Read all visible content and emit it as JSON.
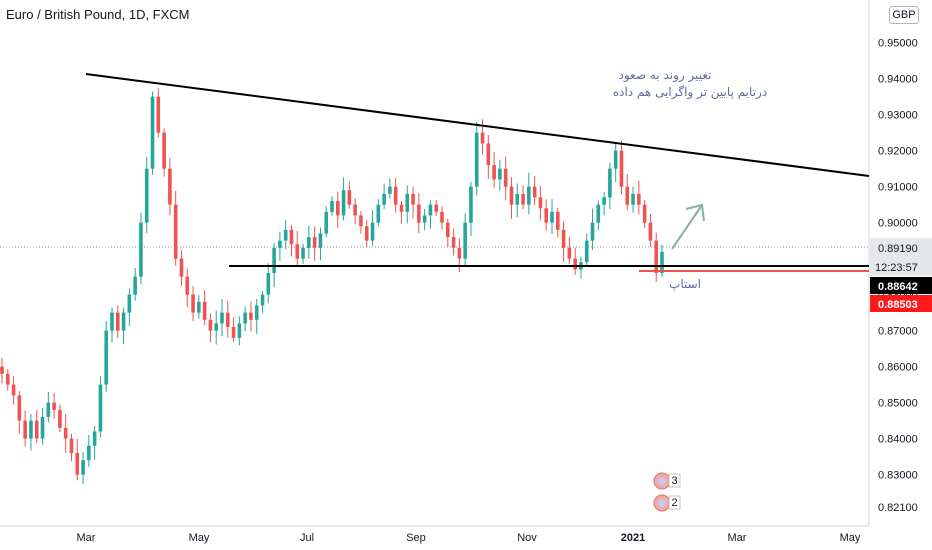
{
  "header": {
    "title": "Euro / British Pound, 1D, FXCM",
    "currency": "GBP"
  },
  "colors": {
    "up": "#26a69a",
    "down": "#ef5350",
    "trendline": "#000000",
    "stop_line": "#ef5350",
    "arrow": "#7fb3a3",
    "current_label_bg": "#e6e7ea",
    "black_label_bg": "#000000",
    "red_label_bg": "#ff1a1a"
  },
  "annotations": {
    "text_line1": "تغییر روند به صعود",
    "text_line2": "درتایم پایین تر واگرایی هم داده",
    "stop_label": "استاپ"
  },
  "price_labels": {
    "current": "0.89190",
    "countdown": "12:23:57",
    "support": "0.88642",
    "stop": "0.88503"
  },
  "event_badges": [
    "3",
    "2"
  ],
  "chart_data": {
    "type": "candlestick",
    "title": "Euro / British Pound, 1D, FXCM",
    "y_ticks": [
      0.821,
      0.83,
      0.84,
      0.85,
      0.86,
      0.87,
      0.88,
      0.89,
      0.9,
      0.91,
      0.92,
      0.93,
      0.94,
      0.95
    ],
    "y_tick_labels": [
      "0.82100",
      "0.83000",
      "0.84000",
      "0.85000",
      "0.86000",
      "0.87000",
      "0.88000",
      "0.89000",
      "0.90000",
      "0.91000",
      "0.92000",
      "0.93000",
      "0.94000",
      "0.95000"
    ],
    "x_tick_labels": [
      "Mar",
      "May",
      "Jul",
      "Sep",
      "Nov",
      "2021",
      "Mar",
      "May"
    ],
    "ylim": [
      0.8195,
      0.9635
    ],
    "grid": false,
    "trendlines": [
      {
        "name": "resistance",
        "start": [
          "2020-02-15",
          0.9435
        ],
        "end": [
          "2021-06-01",
          0.913
        ]
      },
      {
        "name": "support",
        "start": [
          "2020-05-10",
          0.8864
        ],
        "end": [
          "2021-06-01",
          0.8864
        ]
      }
    ],
    "stop_level": 0.88503,
    "last_price": 0.8919,
    "closes": [
      0.858,
      0.855,
      0.852,
      0.845,
      0.84,
      0.845,
      0.84,
      0.846,
      0.85,
      0.848,
      0.843,
      0.84,
      0.836,
      0.83,
      0.834,
      0.838,
      0.842,
      0.855,
      0.87,
      0.875,
      0.87,
      0.875,
      0.88,
      0.885,
      0.9,
      0.915,
      0.935,
      0.925,
      0.915,
      0.905,
      0.89,
      0.885,
      0.88,
      0.875,
      0.878,
      0.873,
      0.87,
      0.872,
      0.875,
      0.871,
      0.868,
      0.872,
      0.875,
      0.873,
      0.877,
      0.88,
      0.886,
      0.893,
      0.895,
      0.898,
      0.894,
      0.89,
      0.893,
      0.896,
      0.893,
      0.897,
      0.903,
      0.906,
      0.902,
      0.909,
      0.905,
      0.902,
      0.899,
      0.895,
      0.9,
      0.905,
      0.908,
      0.91,
      0.905,
      0.903,
      0.908,
      0.905,
      0.9,
      0.902,
      0.905,
      0.903,
      0.9,
      0.896,
      0.893,
      0.89,
      0.9,
      0.91,
      0.925,
      0.922,
      0.916,
      0.912,
      0.915,
      0.91,
      0.905,
      0.908,
      0.905,
      0.91,
      0.907,
      0.904,
      0.9,
      0.903,
      0.898,
      0.893,
      0.89,
      0.887,
      0.889,
      0.895,
      0.9,
      0.905,
      0.907,
      0.915,
      0.92,
      0.91,
      0.905,
      0.908,
      0.905,
      0.9,
      0.895,
      0.886,
      0.8919
    ]
  }
}
